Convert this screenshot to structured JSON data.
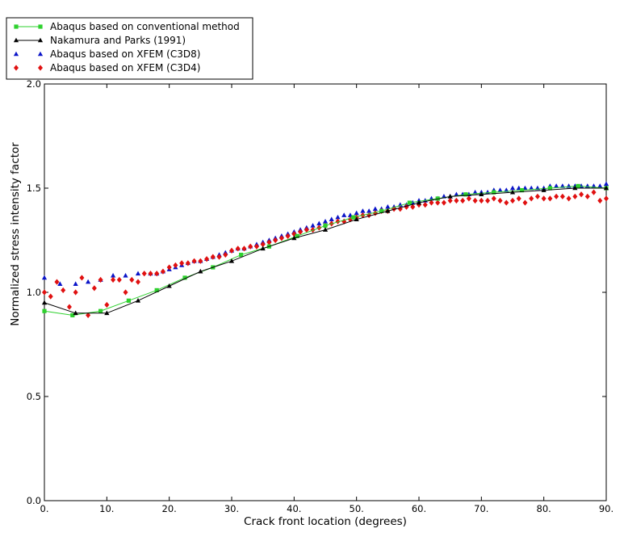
{
  "chart_data": {
    "type": "line",
    "xlabel": "Crack front location (degrees)",
    "ylabel": "Normalized stress intensity factor",
    "xlim": [
      0,
      90
    ],
    "ylim": [
      0,
      2.0
    ],
    "xticks": [
      0,
      10,
      20,
      30,
      40,
      50,
      60,
      70,
      80,
      90
    ],
    "xtick_labels": [
      "0.",
      "10.",
      "20.",
      "30.",
      "40.",
      "50.",
      "60.",
      "70.",
      "80.",
      "90."
    ],
    "yticks": [
      0,
      0.5,
      1.0,
      1.5,
      2.0
    ],
    "ytick_labels": [
      "0.0",
      "0.5",
      "1.0",
      "1.5",
      "2.0"
    ],
    "grid": false,
    "legend_position": "top-left, outside plot",
    "series": [
      {
        "name": "Abaqus based on conventional method",
        "color": "#2ed12e",
        "marker": "square",
        "line": true,
        "x": [
          0,
          4.5,
          9,
          13.5,
          18,
          22.5,
          27,
          31.5,
          36,
          40.5,
          45,
          49.5,
          54,
          58.5,
          63,
          67.5,
          72,
          76.5,
          81,
          85.5,
          90
        ],
        "y": [
          0.91,
          0.89,
          0.91,
          0.96,
          1.01,
          1.07,
          1.12,
          1.18,
          1.22,
          1.27,
          1.32,
          1.36,
          1.39,
          1.43,
          1.45,
          1.47,
          1.48,
          1.49,
          1.5,
          1.51,
          1.5
        ]
      },
      {
        "name": "Nakamura and Parks (1991)",
        "color": "#000000",
        "marker": "triangle",
        "line": true,
        "x": [
          0,
          5,
          10,
          15,
          20,
          25,
          30,
          35,
          40,
          45,
          50,
          55,
          60,
          65,
          70,
          75,
          80,
          85,
          90
        ],
        "y": [
          0.95,
          0.9,
          0.9,
          0.96,
          1.03,
          1.1,
          1.15,
          1.21,
          1.26,
          1.3,
          1.35,
          1.39,
          1.43,
          1.46,
          1.47,
          1.48,
          1.49,
          1.5,
          1.5
        ]
      },
      {
        "name": "Abaqus based on XFEM (C3D8)",
        "color": "#0a14c8",
        "marker": "triangle",
        "line": false,
        "x": [
          0,
          2.5,
          5,
          7,
          9,
          11,
          13,
          15,
          17,
          18,
          19,
          20,
          21,
          22,
          23,
          24,
          25,
          26,
          27,
          28,
          29,
          30,
          31,
          32,
          33,
          34,
          35,
          36,
          37,
          38,
          39,
          40,
          41,
          42,
          43,
          44,
          45,
          46,
          47,
          48,
          49,
          50,
          51,
          52,
          53,
          54,
          55,
          56,
          57,
          58,
          59,
          60,
          61,
          62,
          63,
          64,
          65,
          66,
          67,
          68,
          69,
          70,
          71,
          72,
          73,
          74,
          75,
          76,
          77,
          78,
          79,
          80,
          81,
          82,
          83,
          84,
          85,
          86,
          87,
          88,
          89,
          90
        ],
        "y": [
          1.07,
          1.04,
          1.04,
          1.05,
          1.06,
          1.08,
          1.08,
          1.09,
          1.09,
          1.09,
          1.1,
          1.11,
          1.12,
          1.13,
          1.14,
          1.15,
          1.15,
          1.16,
          1.17,
          1.18,
          1.19,
          1.2,
          1.21,
          1.21,
          1.22,
          1.23,
          1.24,
          1.25,
          1.26,
          1.27,
          1.28,
          1.29,
          1.3,
          1.31,
          1.32,
          1.33,
          1.34,
          1.35,
          1.36,
          1.37,
          1.37,
          1.38,
          1.39,
          1.39,
          1.4,
          1.4,
          1.41,
          1.41,
          1.42,
          1.42,
          1.43,
          1.44,
          1.44,
          1.45,
          1.45,
          1.46,
          1.46,
          1.47,
          1.47,
          1.47,
          1.48,
          1.48,
          1.48,
          1.49,
          1.49,
          1.49,
          1.5,
          1.5,
          1.5,
          1.5,
          1.5,
          1.5,
          1.51,
          1.51,
          1.51,
          1.51,
          1.51,
          1.51,
          1.51,
          1.51,
          1.51,
          1.52
        ]
      },
      {
        "name": "Abaqus based on XFEM (C3D4)",
        "color": "#e01010",
        "marker": "diamond",
        "line": false,
        "x": [
          0,
          1,
          2,
          3,
          4,
          5,
          6,
          7,
          8,
          9,
          10,
          11,
          12,
          13,
          14,
          15,
          16,
          17,
          18,
          19,
          20,
          21,
          22,
          23,
          24,
          25,
          26,
          27,
          28,
          29,
          30,
          31,
          32,
          33,
          34,
          35,
          36,
          37,
          38,
          39,
          40,
          41,
          42,
          43,
          44,
          45,
          46,
          47,
          48,
          49,
          50,
          51,
          52,
          53,
          54,
          55,
          56,
          57,
          58,
          59,
          60,
          61,
          62,
          63,
          64,
          65,
          66,
          67,
          68,
          69,
          70,
          71,
          72,
          73,
          74,
          75,
          76,
          77,
          78,
          79,
          80,
          81,
          82,
          83,
          84,
          85,
          86,
          87,
          88,
          89,
          90
        ],
        "y": [
          1.0,
          0.98,
          1.05,
          1.01,
          0.93,
          1.0,
          1.07,
          0.89,
          1.02,
          1.06,
          0.94,
          1.06,
          1.06,
          1.0,
          1.06,
          1.05,
          1.09,
          1.09,
          1.09,
          1.1,
          1.12,
          1.13,
          1.14,
          1.14,
          1.15,
          1.15,
          1.16,
          1.17,
          1.17,
          1.18,
          1.2,
          1.21,
          1.21,
          1.22,
          1.22,
          1.23,
          1.24,
          1.25,
          1.26,
          1.27,
          1.28,
          1.29,
          1.3,
          1.3,
          1.31,
          1.32,
          1.33,
          1.34,
          1.34,
          1.35,
          1.36,
          1.37,
          1.37,
          1.38,
          1.39,
          1.39,
          1.4,
          1.4,
          1.41,
          1.41,
          1.42,
          1.42,
          1.43,
          1.43,
          1.43,
          1.44,
          1.44,
          1.44,
          1.45,
          1.44,
          1.44,
          1.44,
          1.45,
          1.44,
          1.43,
          1.44,
          1.45,
          1.43,
          1.45,
          1.46,
          1.45,
          1.45,
          1.46,
          1.46,
          1.45,
          1.46,
          1.47,
          1.46,
          1.48,
          1.44,
          1.45
        ]
      }
    ]
  }
}
